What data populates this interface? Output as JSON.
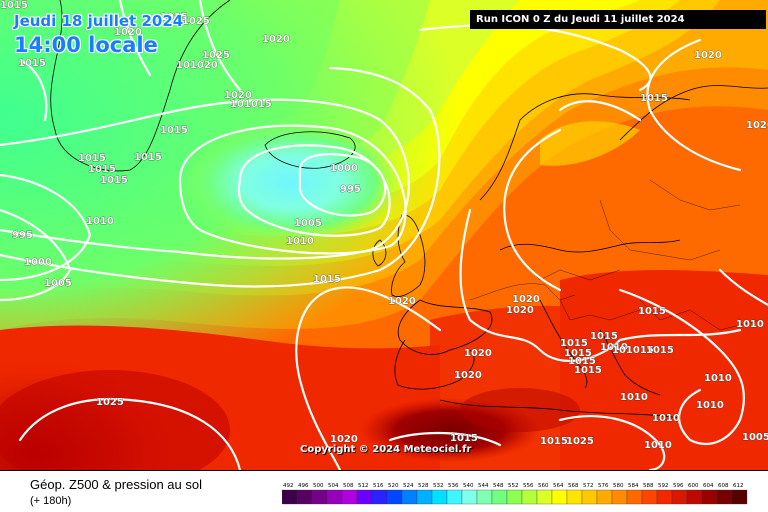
{
  "overlay": {
    "date": "Jeudi 18 juillet 2024",
    "time": "14:00 locale",
    "run": "Run ICON 0 Z du Jeudi 11 juillet 2024",
    "copyright": "Copyright © 2024 Meteociel.fr"
  },
  "legend": {
    "title": "Géop. Z500 & pression au sol",
    "subtitle": "(+ 180h)",
    "scale": [
      "492",
      "496",
      "500",
      "504",
      "508",
      "512",
      "516",
      "520",
      "524",
      "528",
      "532",
      "536",
      "540",
      "544",
      "548",
      "552",
      "556",
      "560",
      "564",
      "568",
      "572",
      "576",
      "580",
      "584",
      "588",
      "592",
      "596",
      "600",
      "604",
      "608",
      "612"
    ],
    "colors": [
      "#3b0049",
      "#560062",
      "#75008a",
      "#9600b8",
      "#b000e0",
      "#6a00ff",
      "#2a22ff",
      "#0048ff",
      "#0080ff",
      "#00b0ff",
      "#00dfff",
      "#3ff5ff",
      "#80ffe8",
      "#80ffb4",
      "#70ff80",
      "#8cff52",
      "#b4ff3c",
      "#dcff28",
      "#ffff00",
      "#ffe400",
      "#ffc800",
      "#ffaa00",
      "#ff8c00",
      "#ff6a00",
      "#ff4600",
      "#f02800",
      "#d81800",
      "#bc0a00",
      "#9a0000",
      "#760000",
      "#560000"
    ]
  },
  "isobars": [
    {
      "label": "1025"
    },
    {
      "label": "1025"
    },
    {
      "label": "1020"
    },
    {
      "label": "1020"
    },
    {
      "label": "1025"
    },
    {
      "label": "101020"
    },
    {
      "label": "1015"
    },
    {
      "label": "1020"
    },
    {
      "label": "101015"
    },
    {
      "label": "1015"
    },
    {
      "label": "1015"
    },
    {
      "label": "1015"
    },
    {
      "label": "1015"
    },
    {
      "label": "1015"
    },
    {
      "label": "1000"
    },
    {
      "label": "995"
    },
    {
      "label": "1005"
    },
    {
      "label": "1010"
    },
    {
      "label": "1010"
    },
    {
      "label": "995"
    },
    {
      "label": "1000"
    },
    {
      "label": "1005"
    },
    {
      "label": "1015"
    },
    {
      "label": "1020"
    },
    {
      "label": "1020"
    },
    {
      "label": "1020"
    },
    {
      "label": "1015"
    },
    {
      "label": "1020"
    },
    {
      "label": "1020"
    },
    {
      "label": "1025"
    },
    {
      "label": "1020"
    },
    {
      "label": "1015"
    },
    {
      "label": "1015"
    },
    {
      "label": "1015"
    },
    {
      "label": "1015"
    },
    {
      "label": "1015"
    },
    {
      "label": "1015"
    },
    {
      "label": "1010"
    },
    {
      "label": "101015"
    },
    {
      "label": "1015"
    },
    {
      "label": "1010"
    },
    {
      "label": "1010"
    },
    {
      "label": "1010"
    },
    {
      "label": "1010"
    },
    {
      "label": "1010"
    },
    {
      "label": "1005"
    },
    {
      "label": "1010"
    },
    {
      "label": "1015"
    },
    {
      "label": "1015"
    },
    {
      "label": "1020"
    },
    {
      "label": "1015"
    },
    {
      "label": "1020"
    },
    {
      "label": "1025"
    }
  ]
}
